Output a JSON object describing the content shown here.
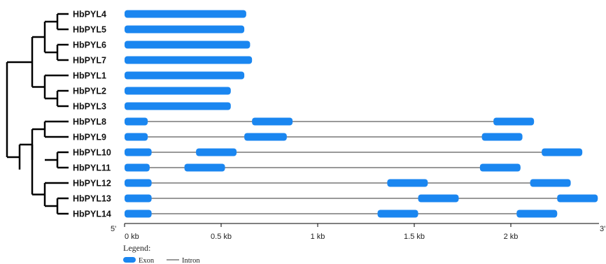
{
  "colors": {
    "exon": "#1a86f0",
    "intron": "#333333",
    "tree": "#000000",
    "axis": "#000000"
  },
  "axis": {
    "ticks": [
      {
        "value": 0,
        "label": "0 kb"
      },
      {
        "value": 0.5,
        "label": "0.5 kb"
      },
      {
        "value": 1,
        "label": "1 kb"
      },
      {
        "value": 1.5,
        "label": "1.5 kb"
      },
      {
        "value": 2,
        "label": "2 kb"
      }
    ],
    "left_edge_label": "5'",
    "right_edge_label": "3'"
  },
  "legend": {
    "title": "Legend:",
    "exon_label": "Exon",
    "intron_label": "Intron"
  },
  "genes": [
    {
      "name": "HbPYL4",
      "length": 0.63,
      "exons": [
        [
          0,
          0.63
        ]
      ]
    },
    {
      "name": "HbPYL5",
      "length": 0.62,
      "exons": [
        [
          0,
          0.62
        ]
      ]
    },
    {
      "name": "HbPYL6",
      "length": 0.65,
      "exons": [
        [
          0,
          0.65
        ]
      ]
    },
    {
      "name": "HbPYL7",
      "length": 0.66,
      "exons": [
        [
          0,
          0.66
        ]
      ]
    },
    {
      "name": "HbPYL1",
      "length": 0.62,
      "exons": [
        [
          0,
          0.62
        ]
      ]
    },
    {
      "name": "HbPYL2",
      "length": 0.55,
      "exons": [
        [
          0,
          0.55
        ]
      ]
    },
    {
      "name": "HbPYL3",
      "length": 0.55,
      "exons": [
        [
          0,
          0.55
        ]
      ]
    },
    {
      "name": "HbPYL8",
      "length": 2.12,
      "exons": [
        [
          0,
          0.12
        ],
        [
          0.66,
          0.87
        ],
        [
          1.91,
          2.12
        ]
      ]
    },
    {
      "name": "HbPYL9",
      "length": 2.06,
      "exons": [
        [
          0,
          0.12
        ],
        [
          0.62,
          0.84
        ],
        [
          1.85,
          2.06
        ]
      ]
    },
    {
      "name": "HbPYL10",
      "length": 2.37,
      "exons": [
        [
          0,
          0.14
        ],
        [
          0.37,
          0.58
        ],
        [
          2.16,
          2.37
        ]
      ]
    },
    {
      "name": "HbPYL11",
      "length": 2.05,
      "exons": [
        [
          0,
          0.13
        ],
        [
          0.31,
          0.52
        ],
        [
          1.84,
          2.05
        ]
      ]
    },
    {
      "name": "HbPYL12",
      "length": 2.31,
      "exons": [
        [
          0,
          0.14
        ],
        [
          1.36,
          1.57
        ],
        [
          2.1,
          2.31
        ]
      ]
    },
    {
      "name": "HbPYL13",
      "length": 2.45,
      "exons": [
        [
          0,
          0.14
        ],
        [
          1.52,
          1.73
        ],
        [
          2.24,
          2.45
        ]
      ]
    },
    {
      "name": "HbPYL14",
      "length": 2.24,
      "exons": [
        [
          0,
          0.14
        ],
        [
          1.31,
          1.52
        ],
        [
          2.03,
          2.24
        ]
      ]
    }
  ]
}
